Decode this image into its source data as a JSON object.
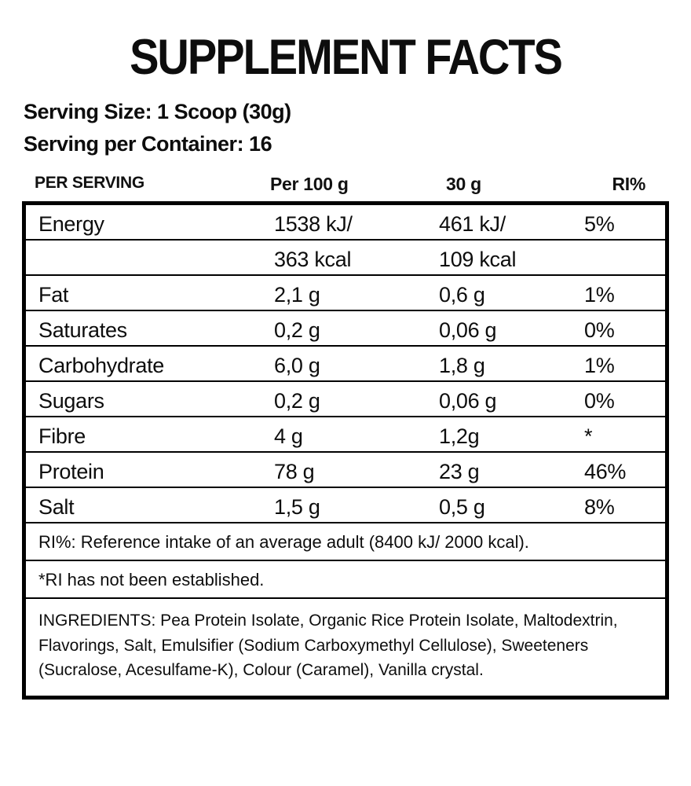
{
  "title": "SUPPLEMENT FACTS",
  "serving": {
    "size": "Serving Size: 1 Scoop (30g)",
    "per_container": "Serving per Container: 16"
  },
  "table": {
    "headers": {
      "per_serving": "PER SERVING",
      "per_100g": "Per 100 g",
      "per_30g": "30 g",
      "ri": "RI%"
    },
    "rows": [
      {
        "name": "Energy",
        "per100": "1538 kJ/",
        "per30": "461 kJ/",
        "ri": "5%"
      },
      {
        "name": "",
        "per100": "363 kcal",
        "per30": "109 kcal",
        "ri": ""
      },
      {
        "name": "Fat",
        "per100": "2,1 g",
        "per30": "0,6 g",
        "ri": "1%"
      },
      {
        "name": "Saturates",
        "per100": "0,2 g",
        "per30": "0,06 g",
        "ri": "0%"
      },
      {
        "name": "Carbohydrate",
        "per100": "6,0 g",
        "per30": "1,8 g",
        "ri": "1%"
      },
      {
        "name": "Sugars",
        "per100": "0,2 g",
        "per30": "0,06 g",
        "ri": "0%"
      },
      {
        "name": "Fibre",
        "per100": "4 g",
        "per30": "1,2g",
        "ri": "*"
      },
      {
        "name": "Protein",
        "per100": "78 g",
        "per30": "23 g",
        "ri": "46%"
      },
      {
        "name": "Salt",
        "per100": "1,5 g",
        "per30": "0,5 g",
        "ri": "8%"
      }
    ],
    "footnotes": [
      "RI%: Reference intake of an average adult (8400 kJ/ 2000 kcal).",
      "*RI has not been established."
    ]
  },
  "ingredients": "INGREDIENTS: Pea Protein Isolate, Organic Rice Protein Isolate, Maltodextrin, Flavorings, Salt, Emulsifier (Sodium Carboxymethyl Cellulose), Sweeteners (Sucralose, Acesulfame-K), Colour (Caramel), Vanilla crystal."
}
